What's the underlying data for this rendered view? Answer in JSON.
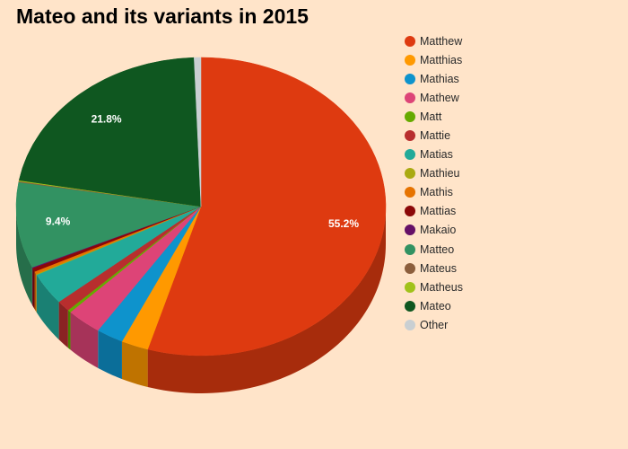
{
  "chart_data": {
    "type": "pie",
    "title": "Mateo and its variants in 2015",
    "legend_position": "right",
    "three_d": true,
    "slices": [
      {
        "name": "Matthew",
        "value": 55.2,
        "color": "#de3a10",
        "label": "55.2%"
      },
      {
        "name": "Matthias",
        "value": 2.4,
        "color": "#ff9900",
        "label": ""
      },
      {
        "name": "Mathias",
        "value": 2.4,
        "color": "#0e93cc",
        "label": ""
      },
      {
        "name": "Mathew",
        "value": 3.1,
        "color": "#dd4477",
        "label": ""
      },
      {
        "name": "Matt",
        "value": 0.3,
        "color": "#66aa00",
        "label": ""
      },
      {
        "name": "Mattie",
        "value": 1.2,
        "color": "#b82e2e",
        "label": ""
      },
      {
        "name": "Matias",
        "value": 3.5,
        "color": "#22aa99",
        "label": ""
      },
      {
        "name": "Mathieu",
        "value": 0.1,
        "color": "#aaaa11",
        "label": ""
      },
      {
        "name": "Mathis",
        "value": 0.3,
        "color": "#e67300",
        "label": ""
      },
      {
        "name": "Mattias",
        "value": 0.4,
        "color": "#8b0707",
        "label": ""
      },
      {
        "name": "Makaio",
        "value": 0.1,
        "color": "#651067",
        "label": ""
      },
      {
        "name": "Matteo",
        "value": 9.4,
        "color": "#329262",
        "label": "9.4%"
      },
      {
        "name": "Mateus",
        "value": 0.1,
        "color": "#8c5e3c",
        "label": ""
      },
      {
        "name": "Matheus",
        "value": 0.1,
        "color": "#a1c21a",
        "label": ""
      },
      {
        "name": "Mateo",
        "value": 21.8,
        "color": "#0f5720",
        "label": "21.8%"
      },
      {
        "name": "Other",
        "value": 0.6,
        "color": "#c9cfd2",
        "label": ""
      }
    ]
  }
}
